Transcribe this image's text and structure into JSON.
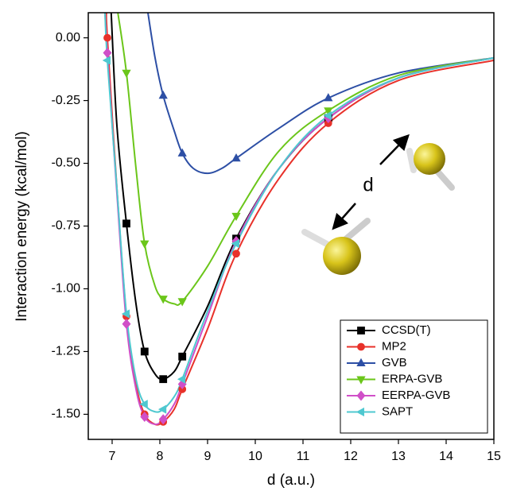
{
  "chart_data": {
    "type": "line",
    "x_label": "d (a.u.)",
    "y_label": "Interaction energy (kcal/mol)",
    "annotation": "d",
    "legend": "lower right",
    "xlim": [
      6.5,
      15
    ],
    "ylim": [
      -1.6,
      0.1
    ],
    "xticks": [
      7,
      8,
      9,
      10,
      11,
      12,
      13,
      14,
      15
    ],
    "yticks": [
      {
        "value": 0,
        "label": "0.00"
      },
      {
        "value": -0.25,
        "label": "-0.25"
      },
      {
        "value": -0.5,
        "label": "-0.50"
      },
      {
        "value": -0.75,
        "label": "-0.75"
      },
      {
        "value": -1,
        "label": "-1.00"
      },
      {
        "value": -1.25,
        "label": "-1.25"
      },
      {
        "value": -1.5,
        "label": "-1.50"
      }
    ],
    "series": [
      {
        "name": "CCSD(T)",
        "color": "#000000",
        "marker": "square",
        "x": [
          7.3,
          7.68,
          8.07,
          8.47,
          9.6,
          11.53
        ],
        "values": [
          -0.74,
          -1.25,
          -1.36,
          -1.27,
          -0.8,
          -0.32
        ],
        "curve": {
          "x": [
            6.98,
            7.1,
            7.3,
            7.5,
            7.68,
            7.9,
            8.07,
            8.3,
            8.47,
            9,
            9.6,
            10.5,
            11.53,
            13,
            15
          ],
          "values": [
            0.1,
            -0.35,
            -0.74,
            -1.06,
            -1.25,
            -1.34,
            -1.36,
            -1.33,
            -1.27,
            -1.07,
            -0.8,
            -0.52,
            -0.32,
            -0.16,
            -0.08
          ]
        }
      },
      {
        "name": "MP2",
        "color": "#e8312a",
        "marker": "circle",
        "x": [
          6.9,
          7.3,
          7.68,
          8.07,
          8.47,
          9.6,
          11.53
        ],
        "values": [
          0,
          -1.11,
          -1.5,
          -1.53,
          -1.4,
          -0.86,
          -0.34
        ],
        "curve": {
          "x": [
            6.88,
            6.9,
            7.1,
            7.3,
            7.5,
            7.68,
            7.9,
            8.07,
            8.3,
            8.47,
            9,
            9.6,
            10.5,
            11.53,
            13,
            15
          ],
          "values": [
            0.1,
            0,
            -0.6,
            -1.11,
            -1.38,
            -1.5,
            -1.54,
            -1.53,
            -1.48,
            -1.4,
            -1.16,
            -0.86,
            -0.56,
            -0.34,
            -0.17,
            -0.09
          ]
        }
      },
      {
        "name": "GVB",
        "color": "#2d4fa5",
        "marker": "triangle-up",
        "x": [
          8.07,
          8.47,
          9.6,
          11.53
        ],
        "values": [
          -0.23,
          -0.46,
          -0.48,
          -0.24
        ],
        "curve": {
          "x": [
            7.75,
            7.9,
            8.07,
            8.3,
            8.47,
            8.7,
            9,
            9.3,
            9.6,
            10.5,
            11.53,
            13,
            15
          ],
          "values": [
            0.1,
            -0.08,
            -0.23,
            -0.37,
            -0.46,
            -0.52,
            -0.54,
            -0.52,
            -0.48,
            -0.36,
            -0.24,
            -0.14,
            -0.08
          ]
        }
      },
      {
        "name": "ERPA-GVB",
        "color": "#6bc61a",
        "marker": "triangle-down",
        "x": [
          7.3,
          7.68,
          8.07,
          8.47,
          9.6,
          11.53
        ],
        "values": [
          -0.14,
          -0.82,
          -1.04,
          -1.05,
          -0.71,
          -0.29
        ],
        "curve": {
          "x": [
            7.12,
            7.3,
            7.5,
            7.68,
            7.9,
            8.07,
            8.3,
            8.47,
            9,
            9.6,
            10.5,
            11.53,
            13,
            15
          ],
          "values": [
            0.1,
            -0.14,
            -0.52,
            -0.82,
            -0.99,
            -1.04,
            -1.06,
            -1.05,
            -0.91,
            -0.71,
            -0.45,
            -0.29,
            -0.15,
            -0.08
          ]
        }
      },
      {
        "name": "EERPA-GVB",
        "color": "#d04fc8",
        "marker": "diamond",
        "x": [
          6.9,
          7.3,
          7.68,
          8.07,
          8.47,
          9.6,
          11.53
        ],
        "values": [
          -0.06,
          -1.14,
          -1.51,
          -1.52,
          -1.38,
          -0.81,
          -0.32
        ],
        "curve": {
          "x": [
            6.85,
            6.9,
            7.1,
            7.3,
            7.5,
            7.68,
            7.9,
            8.07,
            8.3,
            8.47,
            9,
            9.6,
            10.5,
            11.53,
            13,
            15
          ],
          "values": [
            0.1,
            -0.06,
            -0.62,
            -1.14,
            -1.4,
            -1.51,
            -1.54,
            -1.52,
            -1.46,
            -1.38,
            -1.11,
            -0.81,
            -0.52,
            -0.32,
            -0.16,
            -0.08
          ]
        }
      },
      {
        "name": "SAPT",
        "color": "#4fc8d0",
        "marker": "triangle-left",
        "x": [
          6.9,
          7.3,
          7.68,
          8.07,
          8.47,
          9.6,
          11.53
        ],
        "values": [
          -0.09,
          -1.1,
          -1.46,
          -1.48,
          -1.36,
          -0.82,
          -0.31
        ],
        "curve": {
          "x": [
            6.85,
            6.9,
            7.1,
            7.3,
            7.5,
            7.68,
            7.9,
            8.07,
            8.3,
            8.47,
            9,
            9.6,
            10.5,
            11.53,
            13,
            15
          ],
          "values": [
            0.1,
            -0.09,
            -0.6,
            -1.1,
            -1.36,
            -1.46,
            -1.49,
            -1.48,
            -1.43,
            -1.36,
            -1.09,
            -0.82,
            -0.52,
            -0.31,
            -0.16,
            -0.08
          ]
        }
      }
    ]
  }
}
